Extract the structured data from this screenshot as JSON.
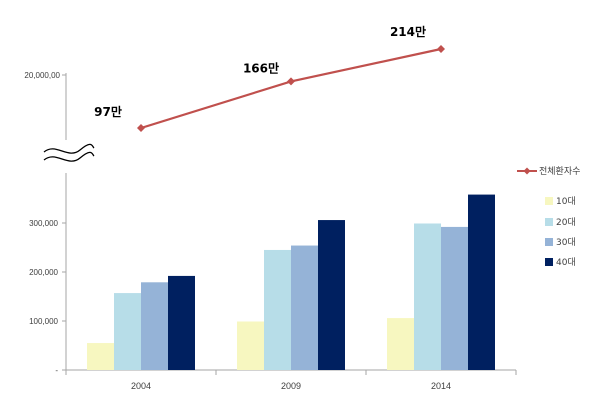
{
  "chart_data": {
    "type": "bar",
    "categories": [
      "2004",
      "2009",
      "2014"
    ],
    "series": [
      {
        "name": "10대",
        "values": [
          55000,
          99000,
          106000
        ],
        "color": "#f7f7c0"
      },
      {
        "name": "20대",
        "values": [
          157000,
          245000,
          299000
        ],
        "color": "#b7dde8"
      },
      {
        "name": "30대",
        "values": [
          179000,
          254000,
          292000
        ],
        "color": "#95b3d7"
      },
      {
        "name": "40대",
        "values": [
          192000,
          306000,
          358000
        ],
        "color": "#002060"
      }
    ],
    "y_axis": {
      "ticks": [
        "-",
        "100,000",
        "200,000",
        "300,000"
      ],
      "tick_values": [
        0,
        100000,
        200000,
        300000
      ],
      "ylim": [
        0,
        350000
      ],
      "break_symbol": true,
      "upper_tick": "20,000,00"
    },
    "line_series": {
      "name": "전체환자수",
      "values": [
        970000,
        1660000,
        2140000
      ],
      "labels": [
        "97만",
        "166만",
        "214만"
      ],
      "color": "#c0504d"
    },
    "legend": {
      "position": "right",
      "items": [
        "전체환자수",
        "10대",
        "20대",
        "30대",
        "40대"
      ]
    },
    "grid": false
  }
}
